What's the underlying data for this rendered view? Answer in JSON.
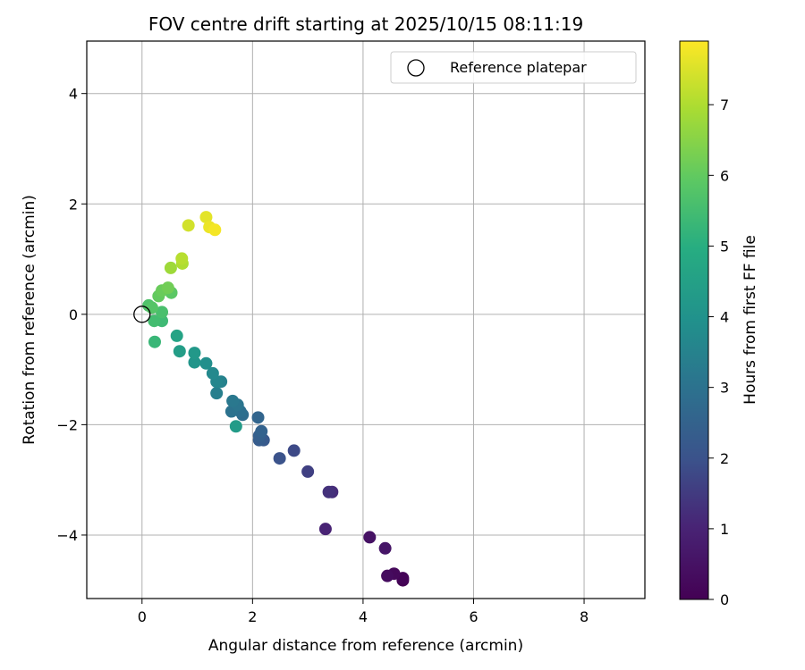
{
  "chart_data": {
    "type": "scatter",
    "title": "FOV centre drift starting at 2025/10/15 08:11:19",
    "xlabel": "Angular distance from reference (arcmin)",
    "ylabel": "Rotation from reference (arcmin)",
    "xlim": [
      -1.0,
      9.1
    ],
    "ylim": [
      -5.15,
      4.95
    ],
    "xticks": [
      0,
      2,
      4,
      6,
      8
    ],
    "xtick_labels": [
      "0",
      "2",
      "4",
      "6",
      "8"
    ],
    "yticks": [
      -4,
      -2,
      0,
      2,
      4
    ],
    "ytick_labels": [
      "−4",
      "−2",
      "0",
      "2",
      "4"
    ],
    "grid": true,
    "legend": {
      "position": "top-right",
      "entries": [
        "Reference platepar"
      ]
    },
    "reference_point": {
      "x": 0,
      "y": 0,
      "label": "Reference platepar"
    },
    "colorbar": {
      "label": "Hours from first FF file",
      "colormap": "viridis",
      "range": [
        0,
        7.9
      ],
      "ticks": [
        0,
        1,
        2,
        3,
        4,
        5,
        6,
        7
      ],
      "tick_labels": [
        "0",
        "1",
        "2",
        "3",
        "4",
        "5",
        "6",
        "7"
      ]
    },
    "points": [
      {
        "x": 4.72,
        "y": -4.82,
        "hours": 0.0
      },
      {
        "x": 4.72,
        "y": -4.78,
        "hours": 0.1
      },
      {
        "x": 4.56,
        "y": -4.7,
        "hours": 0.2
      },
      {
        "x": 4.44,
        "y": -4.74,
        "hours": 0.3
      },
      {
        "x": 4.12,
        "y": -4.04,
        "hours": 0.5
      },
      {
        "x": 4.4,
        "y": -4.24,
        "hours": 0.6
      },
      {
        "x": 3.32,
        "y": -3.89,
        "hours": 1.0
      },
      {
        "x": 3.44,
        "y": -3.22,
        "hours": 1.2
      },
      {
        "x": 3.38,
        "y": -3.22,
        "hours": 1.3
      },
      {
        "x": 3.0,
        "y": -2.85,
        "hours": 1.6
      },
      {
        "x": 2.75,
        "y": -2.47,
        "hours": 1.8
      },
      {
        "x": 2.49,
        "y": -2.61,
        "hours": 2.0
      },
      {
        "x": 2.2,
        "y": -2.28,
        "hours": 2.2
      },
      {
        "x": 2.12,
        "y": -2.28,
        "hours": 2.3
      },
      {
        "x": 2.12,
        "y": -2.2,
        "hours": 2.4
      },
      {
        "x": 2.16,
        "y": -2.12,
        "hours": 2.5
      },
      {
        "x": 2.1,
        "y": -1.87,
        "hours": 2.6
      },
      {
        "x": 1.82,
        "y": -1.82,
        "hours": 2.8
      },
      {
        "x": 1.78,
        "y": -1.76,
        "hours": 2.9
      },
      {
        "x": 1.62,
        "y": -1.76,
        "hours": 3.0
      },
      {
        "x": 1.73,
        "y": -1.64,
        "hours": 3.1
      },
      {
        "x": 1.64,
        "y": -1.57,
        "hours": 3.2
      },
      {
        "x": 1.35,
        "y": -1.43,
        "hours": 3.4
      },
      {
        "x": 1.43,
        "y": -1.22,
        "hours": 3.5
      },
      {
        "x": 1.35,
        "y": -1.22,
        "hours": 3.6
      },
      {
        "x": 1.28,
        "y": -1.07,
        "hours": 3.7
      },
      {
        "x": 1.16,
        "y": -0.89,
        "hours": 3.9
      },
      {
        "x": 0.95,
        "y": -0.87,
        "hours": 4.1
      },
      {
        "x": 0.95,
        "y": -0.7,
        "hours": 4.2
      },
      {
        "x": 0.68,
        "y": -0.67,
        "hours": 4.4
      },
      {
        "x": 1.7,
        "y": -2.03,
        "hours": 4.3
      },
      {
        "x": 0.63,
        "y": -0.39,
        "hours": 4.6
      },
      {
        "x": 0.23,
        "y": -0.5,
        "hours": 5.3
      },
      {
        "x": 0.36,
        "y": -0.12,
        "hours": 5.4
      },
      {
        "x": 0.22,
        "y": -0.12,
        "hours": 5.5
      },
      {
        "x": 0.36,
        "y": 0.04,
        "hours": 5.6
      },
      {
        "x": 0.12,
        "y": 0.16,
        "hours": 5.7
      },
      {
        "x": 0.18,
        "y": 0.12,
        "hours": 5.8
      },
      {
        "x": 0.53,
        "y": 0.39,
        "hours": 5.9
      },
      {
        "x": 0.3,
        "y": 0.33,
        "hours": 6.0
      },
      {
        "x": 0.36,
        "y": 0.43,
        "hours": 6.1
      },
      {
        "x": 0.47,
        "y": 0.48,
        "hours": 6.2
      },
      {
        "x": 0.52,
        "y": 0.84,
        "hours": 6.8
      },
      {
        "x": 0.73,
        "y": 0.92,
        "hours": 7.0
      },
      {
        "x": 0.72,
        "y": 1.01,
        "hours": 7.1
      },
      {
        "x": 0.84,
        "y": 1.61,
        "hours": 7.4
      },
      {
        "x": 1.16,
        "y": 1.76,
        "hours": 7.6
      },
      {
        "x": 1.22,
        "y": 1.58,
        "hours": 7.7
      },
      {
        "x": 1.32,
        "y": 1.53,
        "hours": 7.8
      }
    ]
  }
}
